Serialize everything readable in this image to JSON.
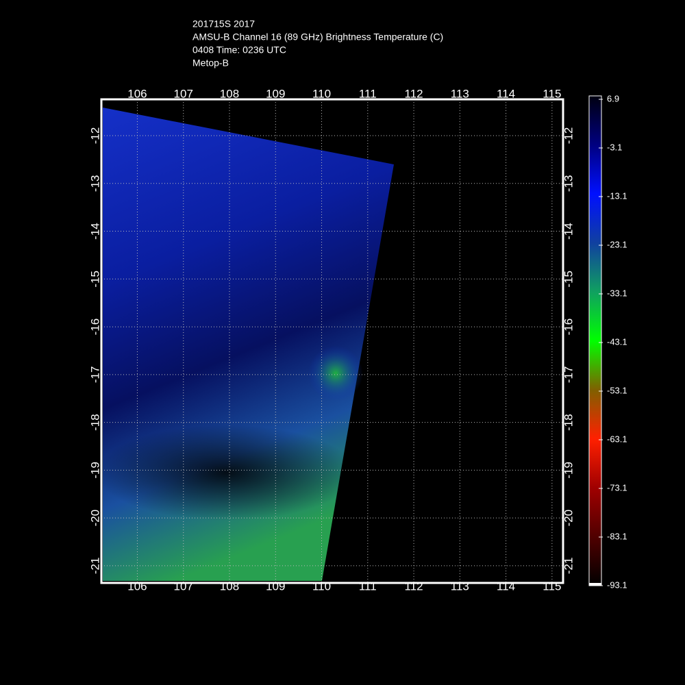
{
  "header": {
    "lines": [
      "201715S 2017",
      "AMSU-B Channel 16 (89 GHz) Brightness Temperature (C)",
      "0408 Time: 0236 UTC",
      "Metop-B"
    ]
  },
  "map": {
    "lon_range": [
      105.22,
      115.24
    ],
    "lat_range": [
      -11.24,
      -21.36
    ],
    "lon_ticks": [
      106,
      107,
      108,
      109,
      110,
      111,
      112,
      113,
      114,
      115
    ],
    "lat_ticks": [
      -12,
      -13,
      -14,
      -15,
      -16,
      -17,
      -18,
      -19,
      -20,
      -21
    ],
    "grid": true
  },
  "colorbar": {
    "ticks": [
      6.9,
      -3.1,
      -13.1,
      -23.1,
      -33.1,
      -43.1,
      -53.1,
      -63.1,
      -73.1,
      -83.1,
      -93.1
    ]
  }
}
